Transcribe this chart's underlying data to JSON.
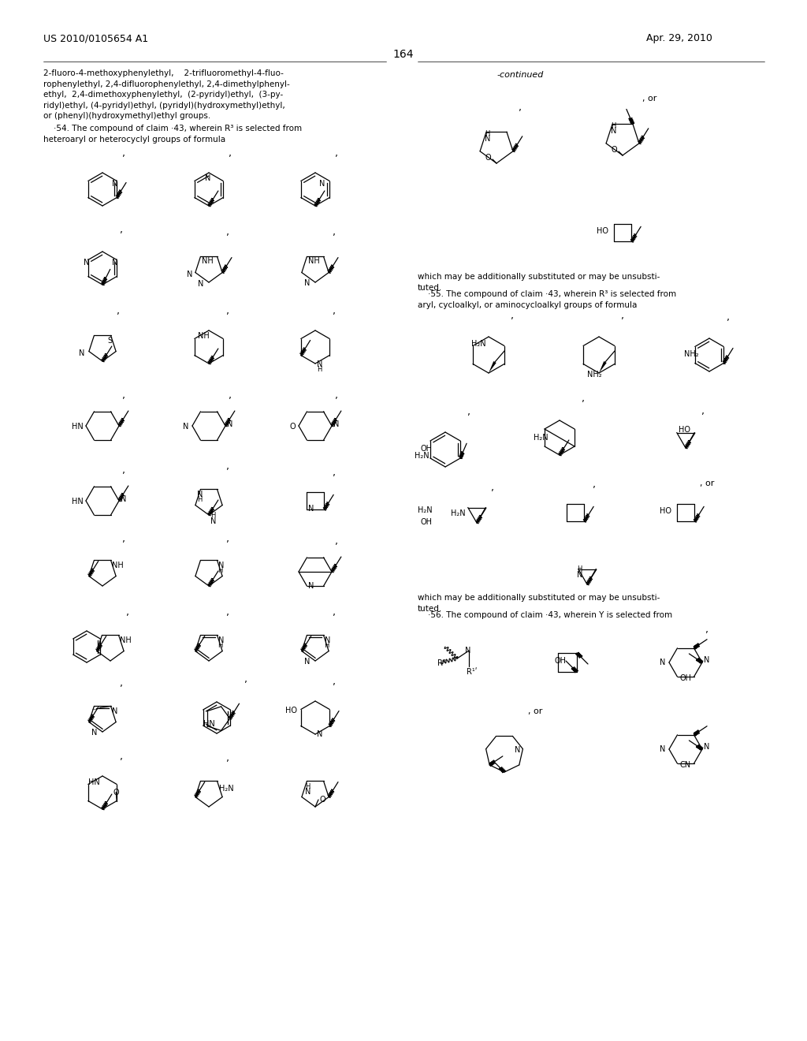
{
  "page_number": "164",
  "patent_number": "US 2010/0105654 A1",
  "patent_date": "Apr. 29, 2010",
  "background_color": "#ffffff"
}
